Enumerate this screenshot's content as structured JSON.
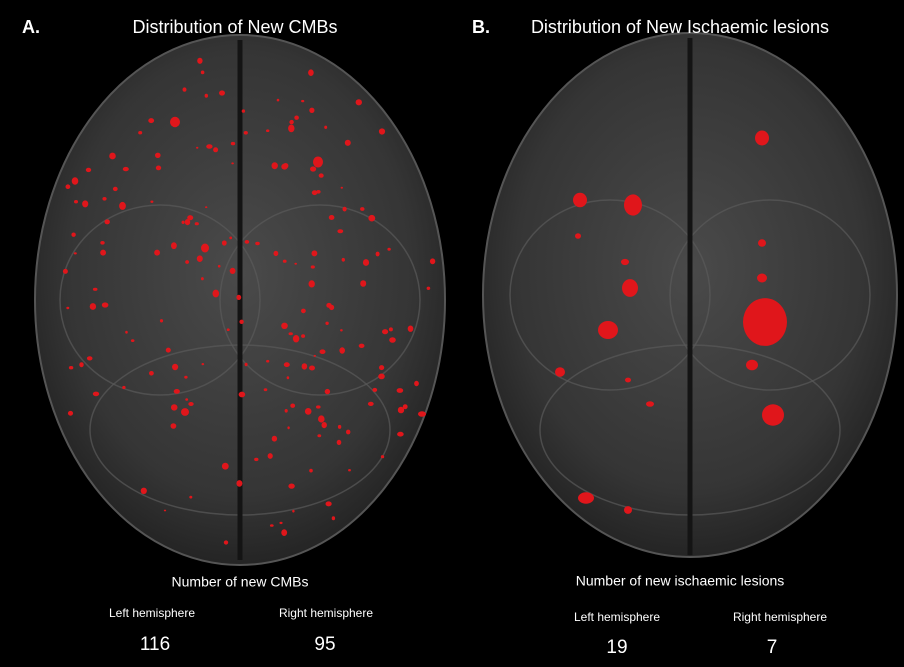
{
  "panels": [
    {
      "label": "A.",
      "title": "Distribution of New CMBs",
      "caption": "Number of new CMBs",
      "left": {
        "label": "Left hemisphere",
        "count": 116
      },
      "right": {
        "label": "Right hemisphere",
        "count": 95
      }
    },
    {
      "label": "B.",
      "title": "Distribution of New Ischaemic lesions",
      "caption": "Number of new ischaemic lesions",
      "left": {
        "label": "Left hemisphere",
        "count": 19
      },
      "right": {
        "label": "Right hemisphere",
        "count": 7
      }
    }
  ]
}
